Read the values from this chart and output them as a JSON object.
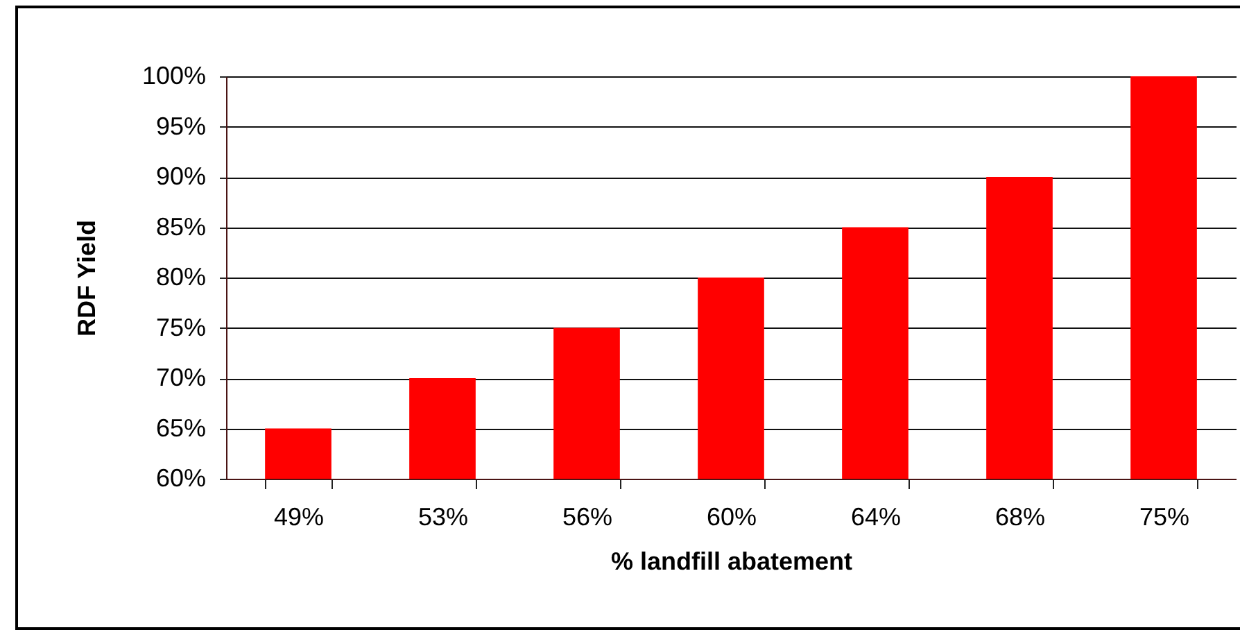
{
  "chart_data": {
    "type": "bar",
    "xlabel": "% landfill abatement",
    "ylabel": "RDF Yield",
    "categories": [
      "49%",
      "53%",
      "56%",
      "60%",
      "64%",
      "68%",
      "75%"
    ],
    "values": [
      65,
      70,
      75,
      80,
      85,
      90,
      100
    ],
    "color": "#ff0000",
    "ylim": [
      60,
      100
    ],
    "yticks": [
      {
        "value": 60,
        "label": "60%"
      },
      {
        "value": 65,
        "label": "65%"
      },
      {
        "value": 70,
        "label": "70%"
      },
      {
        "value": 75,
        "label": "75%"
      },
      {
        "value": 80,
        "label": "80%"
      },
      {
        "value": 85,
        "label": "85%"
      },
      {
        "value": 90,
        "label": "90%"
      },
      {
        "value": 95,
        "label": "95%"
      },
      {
        "value": 100,
        "label": "100%"
      }
    ],
    "grid": "y"
  }
}
